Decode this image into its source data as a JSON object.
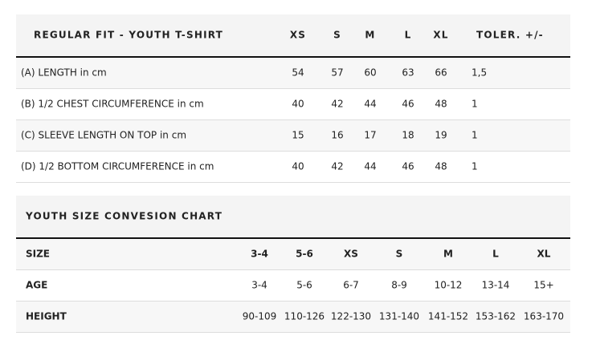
{
  "table1": {
    "header": [
      "REGULAR FIT - YOUTH T-SHIRT",
      "XS",
      "S",
      "M",
      "L",
      "XL",
      "TOLER. +/-"
    ],
    "rows": [
      [
        "(A) LENGTH in cm",
        "54",
        "57",
        "60",
        "63",
        "66",
        "1,5"
      ],
      [
        "(B) 1/2 CHEST CIRCUMFERENCE in cm",
        "40",
        "42",
        "44",
        "46",
        "48",
        "1"
      ],
      [
        "(C) SLEEVE LENGTH ON TOP in cm",
        "15",
        "16",
        "17",
        "18",
        "19",
        "1"
      ],
      [
        "(D) 1/2 BOTTOM CIRCUMFERENCE in cm",
        "40",
        "42",
        "44",
        "46",
        "48",
        "1"
      ]
    ]
  },
  "table2": {
    "title": "YOUTH SIZE CONVESION CHART",
    "rows": [
      [
        "SIZE",
        "3-4",
        "5-6",
        "XS",
        "S",
        "M",
        "L",
        "XL"
      ],
      [
        "AGE",
        "3-4",
        "5-6",
        "6-7",
        "8-9",
        "10-12",
        "13-14",
        "15+"
      ],
      [
        "HEIGHT",
        "90-109",
        "110-126",
        "122-130",
        "131-140",
        "141-152",
        "153-162",
        "163-170"
      ]
    ]
  }
}
